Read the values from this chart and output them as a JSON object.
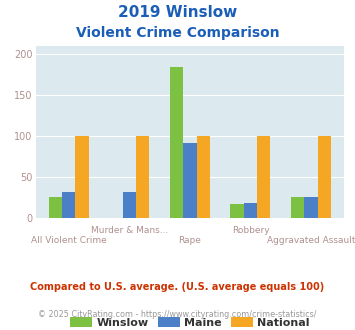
{
  "title_line1": "2019 Winslow",
  "title_line2": "Violent Crime Comparison",
  "categories": [
    "All Violent Crime",
    "Murder & Mans...",
    "Rape",
    "Robbery",
    "Aggravated Assault"
  ],
  "row1_labels": [
    "",
    "Murder & Mans...",
    "",
    "Robbery",
    ""
  ],
  "row2_labels": [
    "All Violent Crime",
    "",
    "Rape",
    "",
    "Aggravated Assault"
  ],
  "series": {
    "Winslow": [
      26,
      0,
      185,
      17,
      26
    ],
    "Maine": [
      32,
      32,
      92,
      18,
      26
    ],
    "National": [
      100,
      100,
      100,
      100,
      100
    ]
  },
  "colors": {
    "Winslow": "#7dc142",
    "Maine": "#4b80c8",
    "National": "#f5a623"
  },
  "ylim": [
    0,
    210
  ],
  "yticks": [
    0,
    50,
    100,
    150,
    200
  ],
  "bg_color": "#dce9ee",
  "title_color": "#1a5eb8",
  "axis_label_color": "#b09090",
  "legend_label_color": "#333333",
  "footer_text": "Compared to U.S. average. (U.S. average equals 100)",
  "footer_color": "#cc3300",
  "credit_text": "© 2025 CityRating.com - https://www.cityrating.com/crime-statistics/",
  "credit_color": "#999999",
  "bar_width": 0.22
}
